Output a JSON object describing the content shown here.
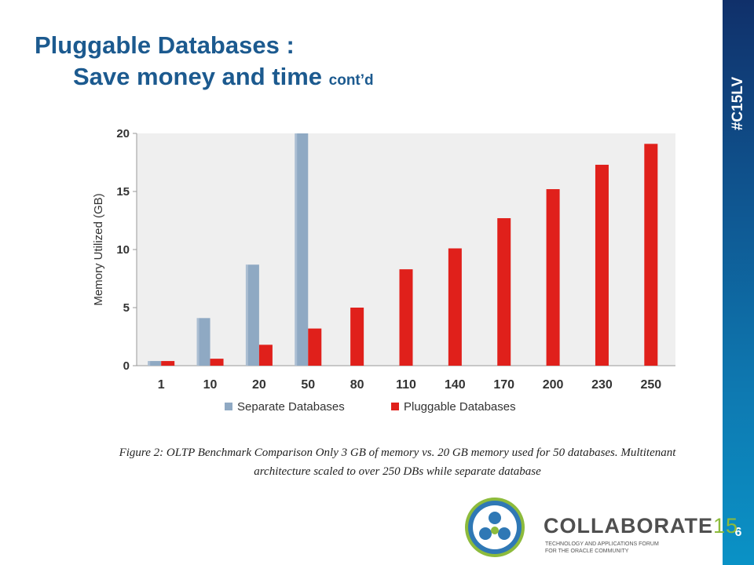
{
  "slide": {
    "title_line1": "Pluggable Databases :",
    "title_line2": "Save money and time",
    "title_suffix": "cont’d",
    "hashtag": "#C15LV",
    "page_number": "6",
    "caption": "Figure 2: OLTP Benchmark Comparison Only 3 GB of  memory vs. 20 GB memory used for 50 databases.  Multitenant architecture scaled to over 250 DBs while separate database",
    "logo": {
      "name": "COLLABORATE",
      "number": "15",
      "tagline_line1": "TECHNOLOGY AND APPLICATIONS FORUM",
      "tagline_line2": "FOR THE ORACLE COMMUNITY"
    }
  },
  "chart_data": {
    "type": "bar",
    "categories": [
      "1",
      "10",
      "20",
      "50",
      "80",
      "110",
      "140",
      "170",
      "200",
      "230",
      "250"
    ],
    "series": [
      {
        "name": "Separate Databases",
        "color": "#8fa9c3",
        "values": [
          0.4,
          4.1,
          8.7,
          20,
          null,
          null,
          null,
          null,
          null,
          null,
          null
        ]
      },
      {
        "name": "Pluggable Databases",
        "color": "#e0201b",
        "values": [
          0.4,
          0.6,
          1.8,
          3.2,
          5.0,
          8.3,
          10.1,
          12.7,
          15.2,
          17.3,
          19.1
        ]
      }
    ],
    "ylabel": "Memory Utilized (GB)",
    "xlabel": "",
    "ylim": [
      0,
      20
    ],
    "yticks": [
      0,
      5,
      10,
      15,
      20
    ],
    "grid": false,
    "legend": "bottom",
    "background": "#efefef"
  }
}
